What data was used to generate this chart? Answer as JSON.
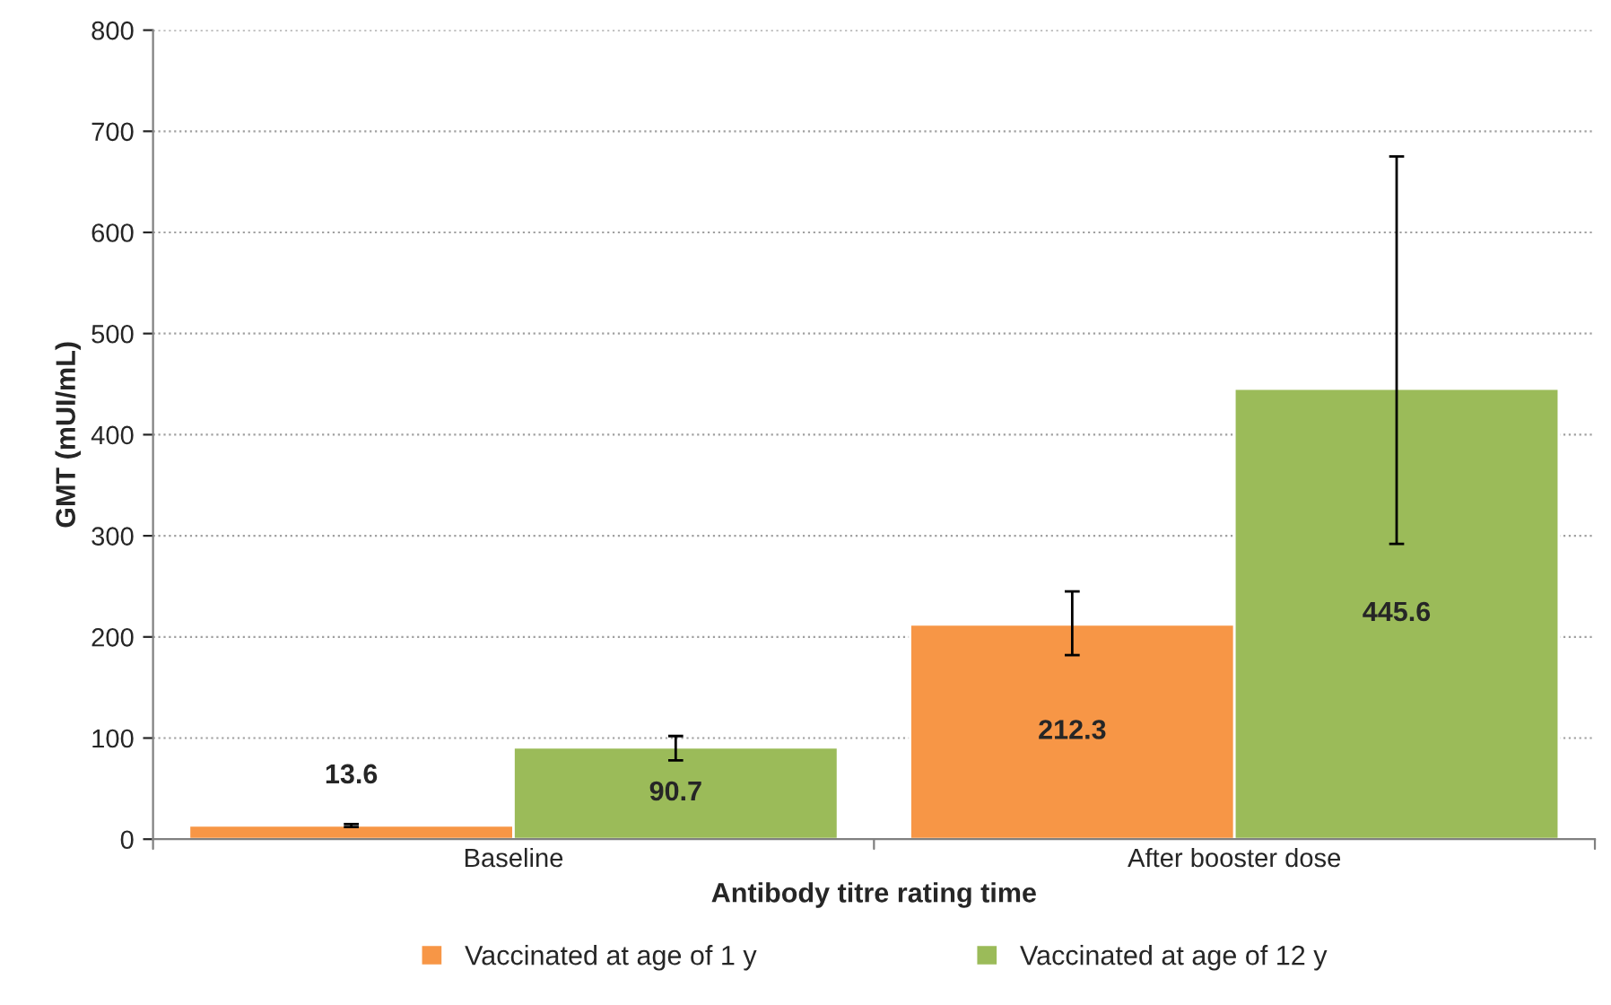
{
  "chart_data": {
    "type": "bar",
    "xlabel": "Antibody titre rating time",
    "ylabel": "GMT (mUI/mL)",
    "categories": [
      "Baseline",
      "After booster dose"
    ],
    "series": [
      {
        "name": "Vaccinated at age of 1 y",
        "color": "#f79646",
        "values": [
          13.6,
          212.3
        ],
        "errors": [
          [
            12,
            15
          ],
          [
            182,
            245
          ]
        ]
      },
      {
        "name": "Vaccinated at age of 12 y",
        "color": "#9bbb59",
        "values": [
          90.7,
          445.6
        ],
        "errors": [
          [
            78,
            102
          ],
          [
            292,
            675
          ]
        ]
      }
    ],
    "ylim": [
      0,
      800
    ],
    "yticks": [
      0,
      100,
      200,
      300,
      400,
      500,
      600,
      700,
      800
    ],
    "grid": "y",
    "legend": "bottom",
    "data_labels": true
  }
}
